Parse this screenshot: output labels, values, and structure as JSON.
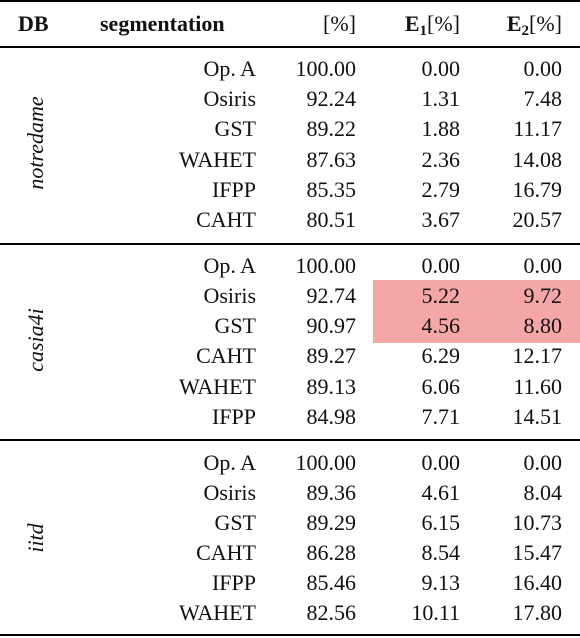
{
  "header": {
    "db": "DB",
    "segmentation": "segmentation",
    "pct": "[%]",
    "e1_main": "E",
    "e1_sub": "1",
    "e1_unit": "[%]",
    "e2_main": "E",
    "e2_sub": "2",
    "e2_unit": "[%]"
  },
  "groups": [
    {
      "db": "notredame",
      "rows": [
        {
          "seg": "Op. A",
          "pct": "100.00",
          "e1": "0.00",
          "e2": "0.00"
        },
        {
          "seg": "Osiris",
          "pct": "92.24",
          "e1": "1.31",
          "e2": "7.48"
        },
        {
          "seg": "GST",
          "pct": "89.22",
          "e1": "1.88",
          "e2": "11.17"
        },
        {
          "seg": "WAHET",
          "pct": "87.63",
          "e1": "2.36",
          "e2": "14.08"
        },
        {
          "seg": "IFPP",
          "pct": "85.35",
          "e1": "2.79",
          "e2": "16.79"
        },
        {
          "seg": "CAHT",
          "pct": "80.51",
          "e1": "3.67",
          "e2": "20.57"
        }
      ]
    },
    {
      "db": "casia4i",
      "rows": [
        {
          "seg": "Op. A",
          "pct": "100.00",
          "e1": "0.00",
          "e2": "0.00"
        },
        {
          "seg": "Osiris",
          "pct": "92.74",
          "e1": "5.22",
          "e2": "9.72",
          "highlight": true
        },
        {
          "seg": "GST",
          "pct": "90.97",
          "e1": "4.56",
          "e2": "8.80",
          "highlight": true
        },
        {
          "seg": "CAHT",
          "pct": "89.27",
          "e1": "6.29",
          "e2": "12.17"
        },
        {
          "seg": "WAHET",
          "pct": "89.13",
          "e1": "6.06",
          "e2": "11.60"
        },
        {
          "seg": "IFPP",
          "pct": "84.98",
          "e1": "7.71",
          "e2": "14.51"
        }
      ]
    },
    {
      "db": "iitd",
      "rows": [
        {
          "seg": "Op. A",
          "pct": "100.00",
          "e1": "0.00",
          "e2": "0.00"
        },
        {
          "seg": "Osiris",
          "pct": "89.36",
          "e1": "4.61",
          "e2": "8.04"
        },
        {
          "seg": "GST",
          "pct": "89.29",
          "e1": "6.15",
          "e2": "10.73"
        },
        {
          "seg": "CAHT",
          "pct": "86.28",
          "e1": "8.54",
          "e2": "15.47"
        },
        {
          "seg": "IFPP",
          "pct": "85.46",
          "e1": "9.13",
          "e2": "16.40"
        },
        {
          "seg": "WAHET",
          "pct": "82.56",
          "e1": "10.11",
          "e2": "17.80"
        }
      ]
    }
  ],
  "highlight_color": "#f5a7a8"
}
